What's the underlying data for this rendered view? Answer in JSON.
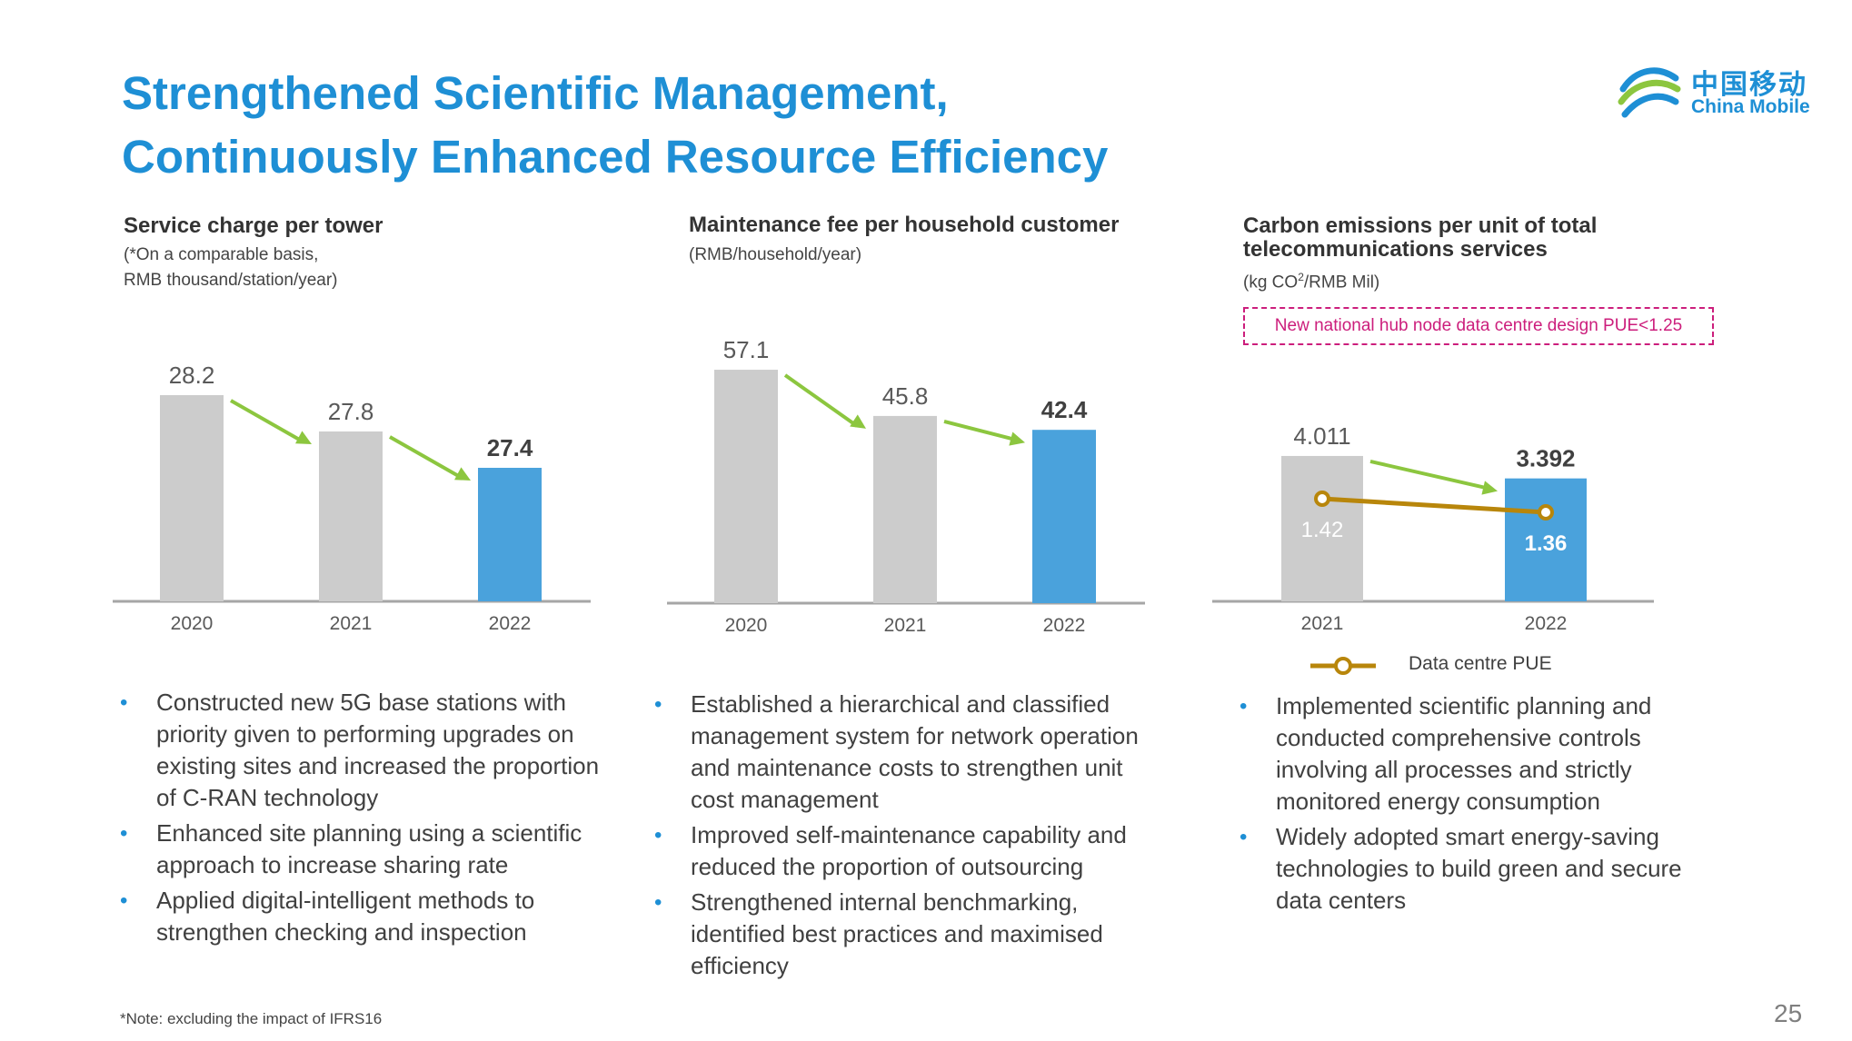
{
  "title": {
    "line1": "Strengthened Scientific Management,",
    "line2": "Continuously Enhanced Resource Efficiency"
  },
  "logo": {
    "cn": "中国移动",
    "en": "China Mobile",
    "icon": "china-mobile-logo-icon"
  },
  "colors": {
    "title": "#1e8fd5",
    "bar_gray": "#cccccc",
    "bar_blue": "#4aa2dc",
    "arrow": "#8cc63f",
    "pue_line": "#b8860b",
    "callout": "#cc1e7c"
  },
  "panels": [
    {
      "title": "Service charge per tower",
      "sub1": "(*On a comparable basis,",
      "sub2": "RMB thousand/station/year)",
      "bullets": [
        "Constructed new 5G base stations with priority given to performing upgrades on existing sites and increased the proportion of C-RAN technology",
        "Enhanced site planning using a scientific approach to increase sharing rate",
        "Applied digital-intelligent methods to strengthen checking and inspection"
      ]
    },
    {
      "title": "Maintenance fee per household customer",
      "sub1": "(RMB/household/year)",
      "bullets": [
        "Established a hierarchical and classified management system for network operation and maintenance costs to strengthen unit cost management",
        "Improved self-maintenance capability and reduced the proportion of outsourcing",
        "Strengthened internal benchmarking, identified best practices and maximised efficiency"
      ]
    },
    {
      "title1": "Carbon emissions per unit of total",
      "title2": "telecommunications services",
      "sub_pre": "(kg CO",
      "sub_sup": "2",
      "sub_post": "/RMB Mil)",
      "callout": "New national hub node data centre design PUE<1.25",
      "legend": "Data centre PUE",
      "bullets": [
        "Implemented scientific planning and conducted comprehensive controls involving all processes and strictly monitored energy consumption",
        "Widely adopted smart energy-saving technologies to build green and secure data centers"
      ]
    }
  ],
  "chart_data": [
    {
      "type": "bar",
      "categories": [
        "2020",
        "2021",
        "2022"
      ],
      "values": [
        28.2,
        27.8,
        27.4
      ],
      "labels": [
        "28.2",
        "27.8",
        "27.4"
      ],
      "highlight_last": true
    },
    {
      "type": "bar",
      "categories": [
        "2020",
        "2021",
        "2022"
      ],
      "values": [
        57.1,
        45.8,
        42.4
      ],
      "labels": [
        "57.1",
        "45.8",
        "42.4"
      ],
      "highlight_last": true
    },
    {
      "type": "bar",
      "categories": [
        "2021",
        "2022"
      ],
      "values": [
        4.011,
        3.392
      ],
      "labels": [
        "4.011",
        "3.392"
      ],
      "highlight_last": true,
      "line_series": {
        "name": "Data centre PUE",
        "values": [
          1.42,
          1.36
        ],
        "labels": [
          "1.42",
          "1.36"
        ]
      }
    }
  ],
  "footnote": "*Note: excluding the impact of IFRS16",
  "page_number": "25"
}
